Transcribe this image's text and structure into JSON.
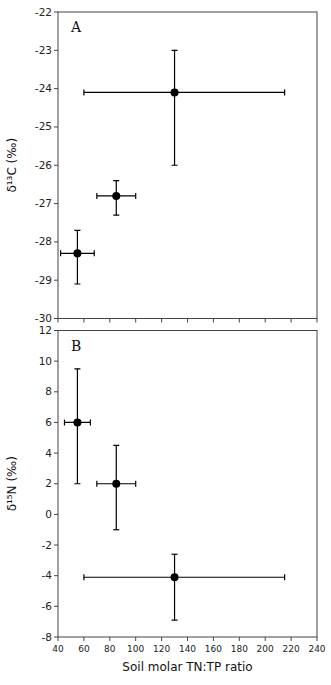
{
  "chart_data": [
    {
      "type": "scatter",
      "annotations": [
        "A"
      ],
      "x": [
        55,
        85,
        130
      ],
      "values": [
        -28.3,
        -26.8,
        -24.1
      ],
      "x_err_minus": [
        13,
        15,
        70
      ],
      "x_err_plus": [
        13,
        15,
        85
      ],
      "y_err_minus": [
        0.8,
        0.5,
        1.9
      ],
      "y_err_plus": [
        0.6,
        0.4,
        1.1
      ],
      "ylabel": "δ¹³C (‰)",
      "xlim": [
        40,
        240
      ],
      "xticks": [
        40,
        60,
        80,
        100,
        120,
        140,
        160,
        180,
        200,
        220,
        240
      ],
      "ylim": [
        -30,
        -22
      ],
      "yticks": [
        -30,
        -29,
        -28,
        -27,
        -26,
        -25,
        -24,
        -23,
        -22
      ],
      "color": "black",
      "marker": "circle",
      "tick_labels": "y"
    },
    {
      "type": "scatter",
      "annotations": [
        "B"
      ],
      "x": [
        55,
        85,
        130
      ],
      "values": [
        6.0,
        2.0,
        -4.1
      ],
      "x_err_minus": [
        10,
        15,
        70
      ],
      "x_err_plus": [
        10,
        15,
        85
      ],
      "y_err_minus": [
        4.0,
        3.0,
        2.8
      ],
      "y_err_plus": [
        3.5,
        2.5,
        1.5
      ],
      "ylabel": "δ¹⁵N (‰)",
      "xlabel": "Soil molar TN:TP ratio",
      "xlim": [
        40,
        240
      ],
      "xticks": [
        40,
        60,
        80,
        100,
        120,
        140,
        160,
        180,
        200,
        220,
        240
      ],
      "ylim": [
        -8,
        12
      ],
      "yticks": [
        -8,
        -6,
        -4,
        -2,
        0,
        2,
        4,
        6,
        8,
        10,
        12
      ],
      "color": "black",
      "marker": "circle"
    }
  ]
}
